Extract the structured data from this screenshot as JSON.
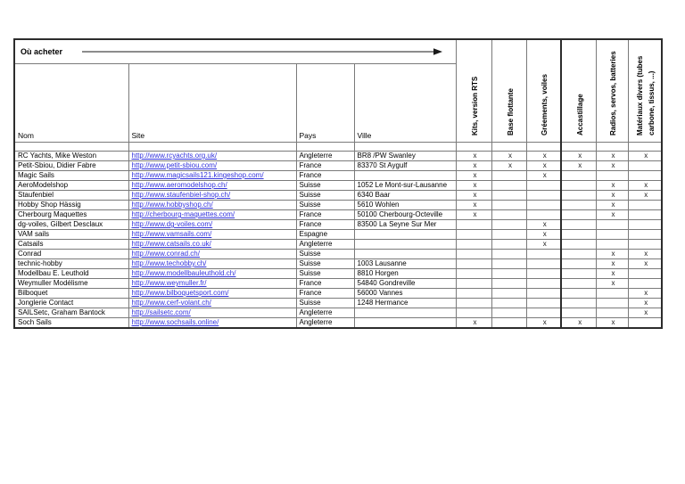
{
  "header": {
    "ou_acheter_label": "Où acheter"
  },
  "table": {
    "columns": {
      "nom": "Nom",
      "site": "Site",
      "pays": "Pays",
      "ville": "Ville"
    },
    "rotated_columns": [
      "Kits, version RTS",
      "Base flottante",
      "Gréements, voiles",
      "Accastillage",
      "Radios, servos, batteries",
      "Matériaux divers (tubes carbone, tissus, ...)"
    ],
    "rows": [
      {
        "nom": "RC Yachts, Mike Weston",
        "site": "http://www.rcyachts.org.uk/",
        "pays": "Angleterre",
        "ville": "BR8 /PW Swanley",
        "marks": [
          "x",
          "x",
          "x",
          "x",
          "x",
          "x"
        ]
      },
      {
        "nom": "Petit-Sbiou, Didier Fabre",
        "site": "http://www.petit-sbiou.com/",
        "pays": "France",
        "ville": "83370 St Aygulf",
        "marks": [
          "x",
          "x",
          "x",
          "x",
          "x",
          ""
        ]
      },
      {
        "nom": "Magic Sails",
        "site": "http://www.magicsails121.kingeshop.com/",
        "pays": "France",
        "ville": "",
        "marks": [
          "x",
          "",
          "x",
          "",
          "",
          ""
        ]
      },
      {
        "nom": "AeroModelshop",
        "site": "http://www.aeromodelshop.ch/",
        "pays": "Suisse",
        "ville": "1052 Le Mont-sur-Lausanne",
        "marks": [
          "x",
          "",
          "",
          "",
          "x",
          "x"
        ]
      },
      {
        "nom": "Staufenbiel",
        "site": "http://www.staufenbiel-shop.ch/",
        "pays": "Suisse",
        "ville": "6340 Baar",
        "marks": [
          "x",
          "",
          "",
          "",
          "x",
          "x"
        ]
      },
      {
        "nom": "Hobby Shop Hässig",
        "site": "http://www.hobbyshop.ch/",
        "pays": "Suisse",
        "ville": "5610 Wohlen",
        "marks": [
          "x",
          "",
          "",
          "",
          "x",
          ""
        ]
      },
      {
        "nom": "Cherbourg Maquettes",
        "site": "http://cherbourg-maquettes.com/",
        "pays": "France",
        "ville": "50100 Cherbourg-Octeville",
        "marks": [
          "x",
          "",
          "",
          "",
          "x",
          ""
        ]
      },
      {
        "nom": "dg-voiles, Gilbert Desclaux",
        "site": "http://www.dg-voiles.com/",
        "pays": "France",
        "ville": "83500 La Seyne Sur Mer",
        "marks": [
          "",
          "",
          "x",
          "",
          "",
          ""
        ]
      },
      {
        "nom": "VAM sails",
        "site": "http://www.vamsails.com/",
        "pays": "Espagne",
        "ville": "",
        "marks": [
          "",
          "",
          "x",
          "",
          "",
          ""
        ]
      },
      {
        "nom": "Catsails",
        "site": "http://www.catsails.co.uk/",
        "pays": "Angleterre",
        "ville": "",
        "marks": [
          "",
          "",
          "x",
          "",
          "",
          ""
        ]
      },
      {
        "nom": "Conrad",
        "site": "http://www.conrad.ch/",
        "pays": "Suisse",
        "ville": "",
        "marks": [
          "",
          "",
          "",
          "",
          "x",
          "x"
        ]
      },
      {
        "nom": "technic-hobby",
        "site": "http://www.techobby.ch/",
        "pays": "Suisse",
        "ville": "1003 Lausanne",
        "marks": [
          "",
          "",
          "",
          "",
          "x",
          "x"
        ]
      },
      {
        "nom": "Modellbau E. Leuthold",
        "site": "http://www.modellbauleuthold.ch/",
        "pays": "Suisse",
        "ville": "8810 Horgen",
        "marks": [
          "",
          "",
          "",
          "",
          "x",
          ""
        ]
      },
      {
        "nom": "Weymuller Modélisme",
        "site": "http://www.weymuller.fr/",
        "pays": "France",
        "ville": "54840 Gondreville",
        "marks": [
          "",
          "",
          "",
          "",
          "x",
          ""
        ]
      },
      {
        "nom": "Bilboquet",
        "site": "http://www.bilboquetsport.com/",
        "pays": "France",
        "ville": "56000 Vannes",
        "marks": [
          "",
          "",
          "",
          "",
          "",
          "x"
        ]
      },
      {
        "nom": "Jonglerie Contact",
        "site": "http://www.cerf-volant.ch/",
        "pays": "Suisse",
        "ville": "1248 Hermance",
        "marks": [
          "",
          "",
          "",
          "",
          "",
          "x"
        ]
      },
      {
        "nom": "SAILSetc, Graham Bantock",
        "site": "http://sailsetc.com/",
        "pays": "Angleterre",
        "ville": "",
        "marks": [
          "",
          "",
          "",
          "",
          "",
          "x"
        ]
      },
      {
        "nom": "Soch Sails",
        "site": "http://www.sochsails.online/",
        "pays": "Angleterre",
        "ville": "",
        "marks": [
          "x",
          "",
          "x",
          "x",
          "x",
          ""
        ]
      }
    ]
  },
  "colors": {
    "link": "#3333dd",
    "grid_line": "#7a7a7a",
    "frame_line": "#2c2c2c"
  }
}
